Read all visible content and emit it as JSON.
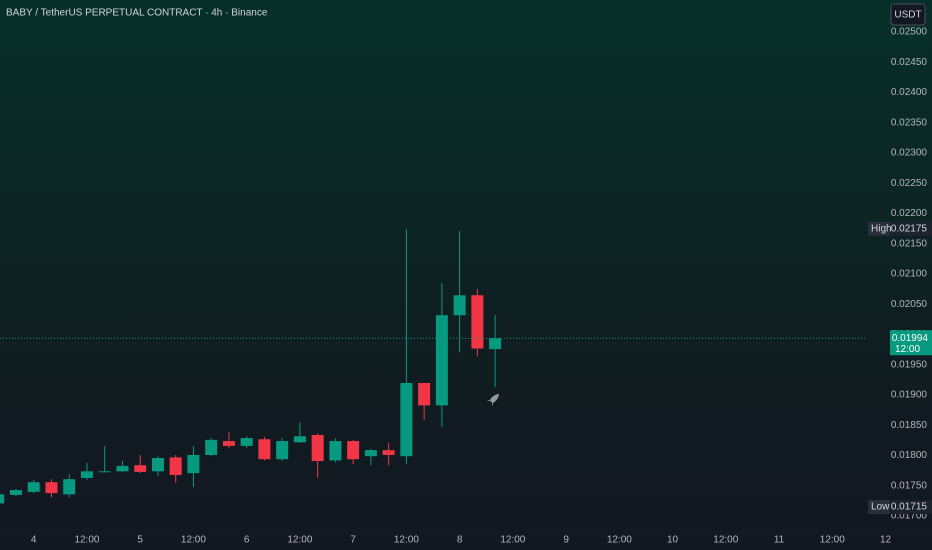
{
  "chart_data": {
    "type": "candlestick",
    "title": "BABY / TetherUS PERPETUAL CONTRACT · 4h · Binance",
    "currency": "USDT",
    "high_label": "High",
    "low_label": "Low",
    "countdown": "12:00",
    "up_color": "#089981",
    "down_color": "#f23645",
    "x": [
      0,
      1,
      2,
      3,
      4,
      5,
      6,
      7,
      8,
      9,
      10,
      11,
      12,
      13,
      14,
      15,
      16,
      17,
      18,
      19,
      20,
      21,
      22,
      23,
      24,
      25,
      26,
      27,
      28
    ],
    "open": [
      0.01721,
      0.01735,
      0.0174,
      0.01756,
      0.01736,
      0.01763,
      0.01773,
      0.01774,
      0.01784,
      0.01774,
      0.01797,
      0.01771,
      0.01801,
      0.01824,
      0.01816,
      0.01827,
      0.01794,
      0.01822,
      0.01834,
      0.01792,
      0.01824,
      0.01799,
      0.01809,
      0.01799,
      0.0192,
      0.01883,
      0.02032,
      0.02065,
      0.01976
    ],
    "high": [
      0.01743,
      0.01745,
      0.0176,
      0.01761,
      0.01769,
      0.01788,
      0.01816,
      0.01792,
      0.01801,
      0.01799,
      0.01801,
      0.01816,
      0.01829,
      0.01839,
      0.01832,
      0.01831,
      0.01829,
      0.01855,
      0.01837,
      0.01829,
      0.01826,
      0.01811,
      0.01821,
      0.02175,
      0.0192,
      0.02085,
      0.02171,
      0.02075,
      0.02032
    ],
    "low": [
      0.01715,
      0.01733,
      0.01738,
      0.01731,
      0.01731,
      0.0176,
      0.01773,
      0.01773,
      0.01771,
      0.01766,
      0.01755,
      0.01748,
      0.01799,
      0.01812,
      0.01812,
      0.01792,
      0.01791,
      0.01821,
      0.01763,
      0.01789,
      0.01786,
      0.01784,
      0.01784,
      0.01786,
      0.01859,
      0.01847,
      0.01971,
      0.01964,
      0.01913
    ],
    "close": [
      0.01736,
      0.01743,
      0.01756,
      0.01738,
      0.01761,
      0.01774,
      0.01774,
      0.01783,
      0.01773,
      0.01796,
      0.01768,
      0.01801,
      0.01826,
      0.01816,
      0.01829,
      0.01794,
      0.01824,
      0.01832,
      0.01791,
      0.01824,
      0.01794,
      0.01809,
      0.01801,
      0.0192,
      0.01883,
      0.02032,
      0.02065,
      0.01977,
      0.01994
    ],
    "xlim": [
      0.1,
      48.9
    ],
    "ylim": [
      0.01677,
      0.02553
    ],
    "xticks": [
      {
        "value": 2,
        "label": "4"
      },
      {
        "value": 5,
        "label": "12:00"
      },
      {
        "value": 8,
        "label": "5"
      },
      {
        "value": 11,
        "label": "12:00"
      },
      {
        "value": 14,
        "label": "6"
      },
      {
        "value": 17,
        "label": "12:00"
      },
      {
        "value": 20,
        "label": "7"
      },
      {
        "value": 23,
        "label": "12:00"
      },
      {
        "value": 26,
        "label": "8"
      },
      {
        "value": 29,
        "label": "12:00"
      },
      {
        "value": 32,
        "label": "9"
      },
      {
        "value": 35,
        "label": "12:00"
      },
      {
        "value": 38,
        "label": "10"
      },
      {
        "value": 41,
        "label": "12:00"
      },
      {
        "value": 44,
        "label": "11"
      },
      {
        "value": 47,
        "label": "12:00"
      },
      {
        "value": 50,
        "label": "12"
      }
    ],
    "yticks": [
      {
        "value": 0.017,
        "label": "0.01700"
      },
      {
        "value": 0.0175,
        "label": "0.01750"
      },
      {
        "value": 0.018,
        "label": "0.01800"
      },
      {
        "value": 0.0185,
        "label": "0.01850"
      },
      {
        "value": 0.019,
        "label": "0.01900"
      },
      {
        "value": 0.0195,
        "label": "0.01950"
      },
      {
        "value": 0.02,
        "label": "0.02000"
      },
      {
        "value": 0.0205,
        "label": "0.02050"
      },
      {
        "value": 0.021,
        "label": "0.02100"
      },
      {
        "value": 0.0215,
        "label": "0.02150"
      },
      {
        "value": 0.022,
        "label": "0.02200"
      },
      {
        "value": 0.0225,
        "label": "0.02250"
      },
      {
        "value": 0.023,
        "label": "0.02300"
      },
      {
        "value": 0.0235,
        "label": "0.02350"
      },
      {
        "value": 0.024,
        "label": "0.02400"
      },
      {
        "value": 0.0245,
        "label": "0.02450"
      },
      {
        "value": 0.025,
        "label": "0.02500"
      }
    ]
  }
}
